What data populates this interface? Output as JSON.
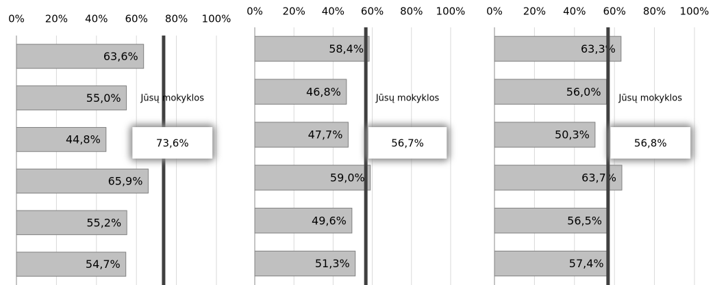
{
  "chart_data": [
    {
      "type": "bar",
      "orientation": "horizontal",
      "categories": [
        null,
        null,
        null,
        null,
        null,
        null
      ],
      "values": [
        63.6,
        55.0,
        44.8,
        65.9,
        55.2,
        54.7
      ],
      "value_labels": [
        "63,6%",
        "55,0%",
        "44,8%",
        "65,9%",
        "55,2%",
        "54,7%"
      ],
      "color": "#c0c0c0",
      "xlim": [
        0,
        100
      ],
      "xticks": [
        {
          "value": 0,
          "label": "0%"
        },
        {
          "value": 20,
          "label": "20%"
        },
        {
          "value": 40,
          "label": "40%"
        },
        {
          "value": 60,
          "label": "60%"
        },
        {
          "value": 80,
          "label": "80%"
        },
        {
          "value": 100,
          "label": "100%"
        }
      ],
      "grid": true,
      "annotation": "Jūsų mokyklos",
      "reference_value": 73.6,
      "reference_label": "73,6%",
      "reference_color": "#404040"
    },
    {
      "type": "bar",
      "orientation": "horizontal",
      "categories": [
        null,
        null,
        null,
        null,
        null,
        null
      ],
      "values": [
        58.4,
        46.8,
        47.7,
        59.0,
        49.6,
        51.3
      ],
      "value_labels": [
        "58,4%",
        "46,8%",
        "47,7%",
        "59,0%",
        "49,6%",
        "51,3%"
      ],
      "color": "#c0c0c0",
      "xlim": [
        0,
        100
      ],
      "xticks": [
        {
          "value": 0,
          "label": "0%"
        },
        {
          "value": 20,
          "label": "20%"
        },
        {
          "value": 40,
          "label": "40%"
        },
        {
          "value": 60,
          "label": "60%"
        },
        {
          "value": 80,
          "label": "80%"
        },
        {
          "value": 100,
          "label": "100%"
        }
      ],
      "grid": true,
      "annotation": "Jūsų mokyklos",
      "reference_value": 56.7,
      "reference_label": "56,7%",
      "reference_color": "#404040"
    },
    {
      "type": "bar",
      "orientation": "horizontal",
      "categories": [
        null,
        null,
        null,
        null,
        null,
        null
      ],
      "values": [
        63.3,
        56.0,
        50.3,
        63.7,
        56.5,
        57.4
      ],
      "value_labels": [
        "63,3%",
        "56,0%",
        "50,3%",
        "63,7%",
        "56,5%",
        "57,4%"
      ],
      "color": "#c0c0c0",
      "xlim": [
        0,
        100
      ],
      "xticks": [
        {
          "value": 0,
          "label": "0%"
        },
        {
          "value": 20,
          "label": "20%"
        },
        {
          "value": 40,
          "label": "40%"
        },
        {
          "value": 60,
          "label": "60%"
        },
        {
          "value": 80,
          "label": "80%"
        },
        {
          "value": 100,
          "label": "100%"
        }
      ],
      "grid": true,
      "annotation": "Jūsų mokyklos",
      "reference_value": 56.8,
      "reference_label": "56,8%",
      "reference_color": "#404040"
    }
  ]
}
